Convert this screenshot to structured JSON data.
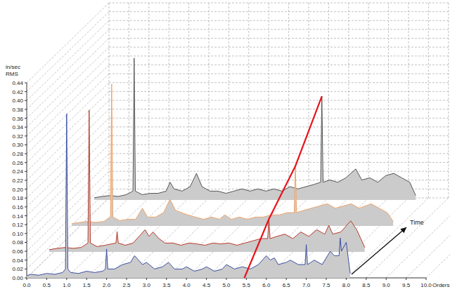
{
  "chart_data": {
    "type": "waterfall",
    "ylabel": [
      "in/sec",
      "RMS"
    ],
    "xlabel": "Orders",
    "depth_label": "Time",
    "grid": true,
    "xlim": [
      0,
      10
    ],
    "ylim": [
      0,
      0.44
    ],
    "xticks": [
      {
        "value": 0,
        "label": "0.0"
      },
      0.5,
      {
        "value": 1,
        "label": "1.0"
      },
      1.5,
      {
        "value": 2,
        "label": "2.0"
      },
      2.5,
      {
        "value": 3,
        "label": "3.0"
      },
      3.5,
      {
        "value": 4,
        "label": "4.0"
      },
      4.5,
      {
        "value": 5,
        "label": "5.0"
      },
      5.5,
      {
        "value": 6,
        "label": "6.0"
      },
      6.5,
      {
        "value": 7,
        "label": "7.0"
      },
      7.5,
      {
        "value": 8,
        "label": "8.0"
      },
      8.5,
      {
        "value": 9,
        "label": "9.0"
      },
      9.5,
      {
        "value": 10,
        "label": "10.0"
      }
    ],
    "yticks": [
      {
        "value": 0,
        "label": "0.00"
      },
      0.02,
      0.04,
      0.06,
      0.08,
      {
        "value": 0.1,
        "label": "0.10"
      },
      0.12,
      0.14,
      0.16,
      0.18,
      {
        "value": 0.2,
        "label": "0.20"
      },
      0.22,
      0.24,
      0.26,
      0.28,
      {
        "value": 0.3,
        "label": "0.30"
      },
      0.32,
      0.34,
      0.36,
      0.38,
      {
        "value": 0.4,
        "label": "0.40"
      },
      0.42,
      0.44
    ],
    "series": [
      {
        "color": "#3b4fa3",
        "x": [
          0,
          0.1,
          0.3,
          0.5,
          0.7,
          0.9,
          0.97,
          1.0,
          1.03,
          1.1,
          1.3,
          1.5,
          1.7,
          1.9,
          1.97,
          2.0,
          2.03,
          2.2,
          2.4,
          2.6,
          2.7,
          2.8,
          2.9,
          3.0,
          3.2,
          3.4,
          3.55,
          3.7,
          3.9,
          4.0,
          4.2,
          4.4,
          4.5,
          4.7,
          4.9,
          5.0,
          5.2,
          5.4,
          5.6,
          5.8,
          6.0,
          6.1,
          6.2,
          6.3,
          6.5,
          6.6,
          6.8,
          6.97,
          7.0,
          7.03,
          7.2,
          7.4,
          7.6,
          7.7,
          7.82,
          7.85,
          7.88,
          8.0,
          8.1
        ],
        "values": [
          0.005,
          0.008,
          0.006,
          0.01,
          0.008,
          0.012,
          0.02,
          0.37,
          0.02,
          0.012,
          0.01,
          0.015,
          0.012,
          0.015,
          0.02,
          0.065,
          0.02,
          0.02,
          0.03,
          0.035,
          0.05,
          0.04,
          0.03,
          0.035,
          0.02,
          0.025,
          0.035,
          0.02,
          0.02,
          0.025,
          0.015,
          0.02,
          0.025,
          0.015,
          0.02,
          0.03,
          0.02,
          0.025,
          0.02,
          0.03,
          0.05,
          0.04,
          0.045,
          0.03,
          0.035,
          0.04,
          0.03,
          0.03,
          0.075,
          0.03,
          0.04,
          0.03,
          0.06,
          0.05,
          0.05,
          0.09,
          0.06,
          0.08,
          0.01
        ]
      },
      {
        "color": "#b83a28",
        "x": [
          0,
          0.2,
          0.4,
          0.6,
          0.8,
          0.97,
          1.0,
          1.03,
          1.2,
          1.4,
          1.67,
          1.7,
          1.73,
          1.9,
          2.1,
          2.3,
          2.4,
          2.5,
          2.6,
          2.75,
          2.9,
          3.1,
          3.3,
          3.5,
          3.7,
          3.9,
          4.1,
          4.3,
          4.5,
          4.7,
          4.9,
          5.1,
          5.3,
          5.47,
          5.5,
          5.53,
          5.7,
          5.9,
          6.1,
          6.3,
          6.5,
          6.7,
          6.9,
          7.0,
          7.1,
          7.3,
          7.55,
          7.7,
          7.9
        ],
        "values": [
          0.005,
          0.008,
          0.01,
          0.008,
          0.01,
          0.02,
          0.32,
          0.02,
          0.012,
          0.015,
          0.02,
          0.046,
          0.02,
          0.015,
          0.02,
          0.04,
          0.05,
          0.035,
          0.045,
          0.03,
          0.02,
          0.02,
          0.015,
          0.02,
          0.018,
          0.015,
          0.02,
          0.018,
          0.02,
          0.015,
          0.02,
          0.025,
          0.03,
          0.03,
          0.074,
          0.03,
          0.035,
          0.04,
          0.03,
          0.045,
          0.035,
          0.05,
          0.04,
          0.06,
          0.04,
          0.045,
          0.07,
          0.05,
          0.01
        ]
      },
      {
        "color": "#f0a46a",
        "x": [
          0,
          0.2,
          0.4,
          0.6,
          0.8,
          0.97,
          1.0,
          1.03,
          1.2,
          1.4,
          1.6,
          1.77,
          1.9,
          2.1,
          2.3,
          2.46,
          2.6,
          2.75,
          2.9,
          3.1,
          3.3,
          3.5,
          3.7,
          3.83,
          4.0,
          4.2,
          4.4,
          4.6,
          4.8,
          5.0,
          5.2,
          5.4,
          5.57,
          5.6,
          5.63,
          5.8,
          6.0,
          6.2,
          6.4,
          6.6,
          6.8,
          7.0,
          7.2,
          7.5,
          7.7,
          7.9,
          8.05
        ],
        "values": [
          0.005,
          0.008,
          0.01,
          0.008,
          0.01,
          0.02,
          0.32,
          0.02,
          0.012,
          0.015,
          0.015,
          0.04,
          0.02,
          0.02,
          0.03,
          0.06,
          0.035,
          0.03,
          0.025,
          0.02,
          0.015,
          0.02,
          0.015,
          0.025,
          0.015,
          0.02,
          0.015,
          0.02,
          0.02,
          0.025,
          0.025,
          0.03,
          0.03,
          0.135,
          0.03,
          0.035,
          0.04,
          0.045,
          0.05,
          0.04,
          0.045,
          0.05,
          0.04,
          0.05,
          0.04,
          0.03,
          0.01
        ]
      },
      {
        "color": "#555555",
        "x": [
          0,
          0.2,
          0.4,
          0.6,
          0.8,
          0.97,
          1.0,
          1.03,
          1.2,
          1.4,
          1.6,
          1.8,
          1.9,
          2.0,
          2.2,
          2.4,
          2.56,
          2.7,
          2.9,
          3.1,
          3.3,
          3.5,
          3.7,
          3.9,
          4.1,
          4.3,
          4.5,
          4.7,
          4.9,
          5.1,
          5.3,
          5.5,
          5.67,
          5.7,
          5.73,
          5.9,
          6.1,
          6.3,
          6.55,
          6.7,
          6.9,
          7.1,
          7.3,
          7.5,
          7.7,
          7.9,
          8.05
        ],
        "values": [
          0.005,
          0.008,
          0.01,
          0.008,
          0.012,
          0.02,
          0.32,
          0.02,
          0.012,
          0.015,
          0.015,
          0.02,
          0.04,
          0.025,
          0.02,
          0.03,
          0.06,
          0.03,
          0.02,
          0.02,
          0.015,
          0.02,
          0.025,
          0.02,
          0.025,
          0.02,
          0.025,
          0.02,
          0.03,
          0.025,
          0.03,
          0.035,
          0.04,
          0.234,
          0.04,
          0.045,
          0.04,
          0.05,
          0.07,
          0.045,
          0.05,
          0.04,
          0.055,
          0.06,
          0.05,
          0.04,
          0.01
        ]
      }
    ],
    "trend": {
      "color": "#e8141c",
      "x": [
        5.45,
        5.5,
        5.6,
        5.7
      ],
      "values": [
        0,
        0.074,
        0.135,
        0.234
      ]
    }
  }
}
